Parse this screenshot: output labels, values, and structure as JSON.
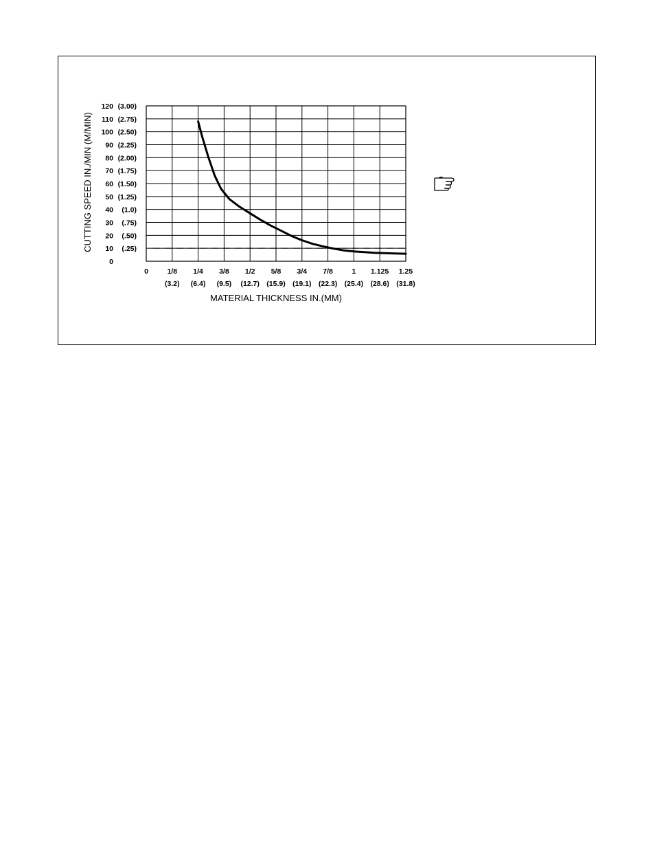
{
  "chart_data": {
    "type": "line",
    "title": "",
    "xlabel": "MATERIAL THICKNESS IN.(MM)",
    "ylabel": "CUTTING SPEED IN./MIN (M/MIN)",
    "xlim": [
      0,
      1.25
    ],
    "ylim": [
      0,
      120
    ],
    "grid": true,
    "x_ticks": [
      {
        "value": 0,
        "label": "0",
        "sublabel": ""
      },
      {
        "value": 0.125,
        "label": "1/8",
        "sublabel": "(3.2)"
      },
      {
        "value": 0.25,
        "label": "1/4",
        "sublabel": "(6.4)"
      },
      {
        "value": 0.375,
        "label": "3/8",
        "sublabel": "(9.5)"
      },
      {
        "value": 0.5,
        "label": "1/2",
        "sublabel": "(12.7)"
      },
      {
        "value": 0.625,
        "label": "5/8",
        "sublabel": "(15.9)"
      },
      {
        "value": 0.75,
        "label": "3/4",
        "sublabel": "(19.1)"
      },
      {
        "value": 0.875,
        "label": "7/8",
        "sublabel": "(22.3)"
      },
      {
        "value": 1.0,
        "label": "1",
        "sublabel": "(25.4)"
      },
      {
        "value": 1.125,
        "label": "1.125",
        "sublabel": "(28.6)"
      },
      {
        "value": 1.25,
        "label": "1.25",
        "sublabel": "(31.8)"
      }
    ],
    "y_ticks": [
      {
        "value": 0,
        "label": "0",
        "sublabel": ""
      },
      {
        "value": 10,
        "label": "10",
        "sublabel": "(.25)"
      },
      {
        "value": 20,
        "label": "20",
        "sublabel": "(.50)"
      },
      {
        "value": 30,
        "label": "30",
        "sublabel": "(.75)"
      },
      {
        "value": 40,
        "label": "40",
        "sublabel": "(1.0)"
      },
      {
        "value": 50,
        "label": "50",
        "sublabel": "(1.25)"
      },
      {
        "value": 60,
        "label": "60",
        "sublabel": "(1.50)"
      },
      {
        "value": 70,
        "label": "70",
        "sublabel": "(1.75)"
      },
      {
        "value": 80,
        "label": "80",
        "sublabel": "(2.00)"
      },
      {
        "value": 90,
        "label": "90",
        "sublabel": "(2.25)"
      },
      {
        "value": 100,
        "label": "100",
        "sublabel": "(2.50)"
      },
      {
        "value": 110,
        "label": "110",
        "sublabel": "(2.75)"
      },
      {
        "value": 120,
        "label": "120",
        "sublabel": "(3.00)"
      }
    ],
    "series": [
      {
        "x": [
          0.25,
          0.27,
          0.3,
          0.33,
          0.36,
          0.4,
          0.45,
          0.5,
          0.55,
          0.6,
          0.65,
          0.7,
          0.75,
          0.8,
          0.85,
          0.9,
          0.95,
          1.0,
          1.05,
          1.1,
          1.15,
          1.2,
          1.25
        ],
        "y": [
          108,
          96,
          80,
          66,
          56,
          48,
          42,
          37,
          32,
          27.5,
          23.5,
          19.5,
          16.2,
          13.5,
          11.5,
          9.8,
          8.4,
          7.6,
          7.0,
          6.5,
          6.2,
          6.0,
          5.8
        ]
      }
    ],
    "reference_line": {
      "y": 10,
      "style": "dashed"
    },
    "side_icon": "pointing-hand-icon"
  }
}
